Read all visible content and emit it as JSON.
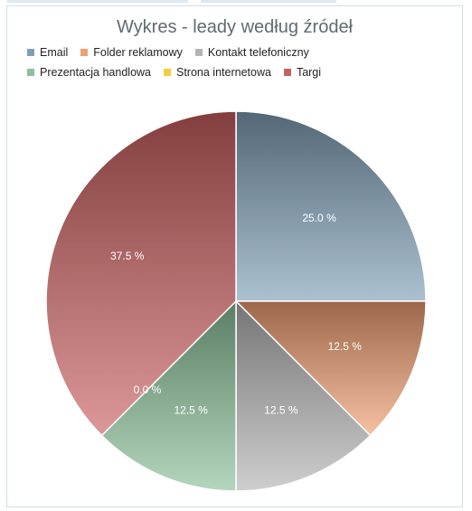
{
  "chart_data": {
    "type": "pie",
    "title": "Wykres - leady według źródeł",
    "legend_position": "top",
    "slices": [
      {
        "name": "Email",
        "value": 25.0,
        "label": "25.0 %",
        "color": "#7f9fb6"
      },
      {
        "name": "Folder reklamowy",
        "value": 12.5,
        "label": "12.5 %",
        "color": "#f0a070"
      },
      {
        "name": "Kontakt telefoniczny",
        "value": 12.5,
        "label": "12.5 %",
        "color": "#b4b4b4"
      },
      {
        "name": "Prezentacja handlowa",
        "value": 12.5,
        "label": "12.5 %",
        "color": "#8cc09a"
      },
      {
        "name": "Strona internetowa",
        "value": 0.0,
        "label": "0.0 %",
        "color": "#f5cf3a"
      },
      {
        "name": "Targi",
        "value": 37.5,
        "label": "37.5 %",
        "color": "#c96060"
      }
    ]
  }
}
